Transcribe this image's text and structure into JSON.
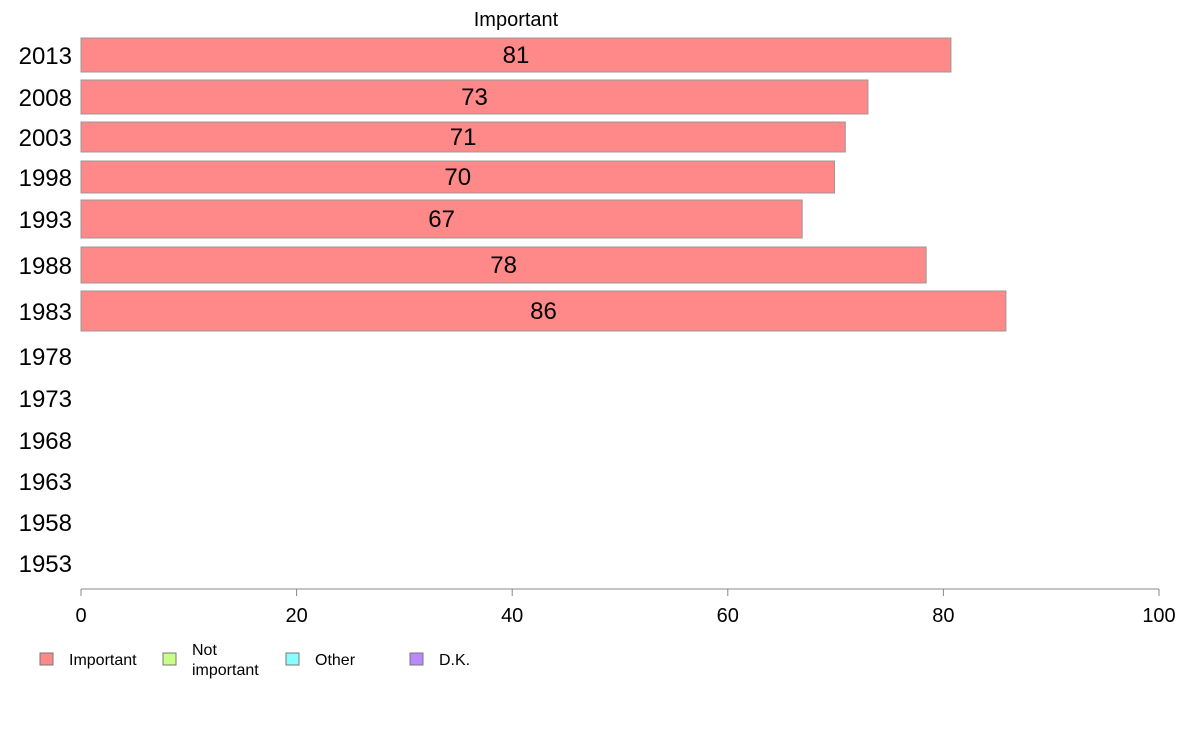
{
  "chart_data": {
    "type": "bar",
    "orientation": "horizontal",
    "title": "Important",
    "categories": [
      "2013",
      "2008",
      "2003",
      "1998",
      "1993",
      "1988",
      "1983",
      "1978",
      "1973",
      "1968",
      "1963",
      "1958",
      "1953"
    ],
    "series": [
      {
        "name": "Important",
        "color": "#ff8888",
        "values": [
          80.7,
          73,
          70.9,
          69.9,
          66.9,
          78.4,
          85.8,
          null,
          null,
          null,
          null,
          null,
          null
        ]
      }
    ],
    "data_labels": [
      "81",
      "73",
      "71",
      "70",
      "67",
      "78",
      "86",
      "",
      "",
      "",
      "",
      "",
      ""
    ],
    "xlim": [
      0,
      100
    ],
    "xticks": [
      0,
      20,
      40,
      60,
      80,
      100
    ],
    "grid": false,
    "legend": {
      "position": "bottom-left",
      "items": [
        {
          "label": "Important",
          "color": "#ff8888"
        },
        {
          "label": "Not\nimportant",
          "color": "#c8ff88"
        },
        {
          "label": "Other",
          "color": "#88ffff"
        },
        {
          "label": "D.K.",
          "color": "#bb88ff"
        }
      ]
    }
  }
}
